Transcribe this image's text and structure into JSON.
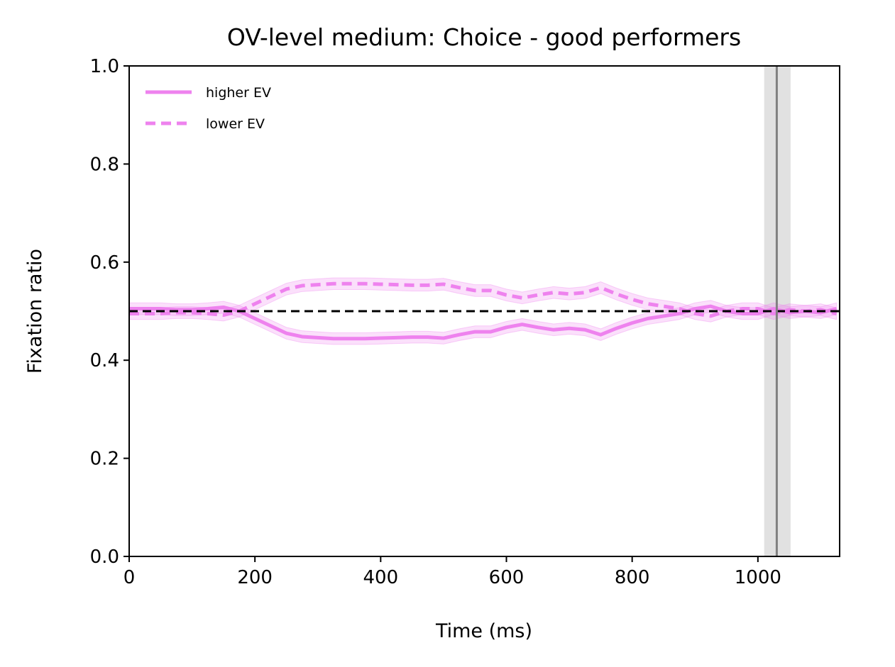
{
  "chart_data": {
    "type": "line",
    "title": "OV-level medium: Choice - good performers",
    "xlabel": "Time (ms)",
    "ylabel": "Fixation ratio",
    "xlim": [
      0,
      1130
    ],
    "ylim": [
      0,
      1
    ],
    "xticks": [
      0,
      200,
      400,
      600,
      800,
      1000
    ],
    "xtick_labels": [
      "0",
      "200",
      "400",
      "600",
      "800",
      "1000"
    ],
    "yticks": [
      0.0,
      0.2,
      0.4,
      0.6,
      0.8,
      1.0
    ],
    "ytick_labels": [
      "0.0",
      "0.2",
      "0.4",
      "0.6",
      "0.8",
      "1.0"
    ],
    "grid": false,
    "legend_position": "top-left",
    "colors": {
      "series": "#ee82ee",
      "reference": "#000000",
      "marker": "#808080",
      "marker_band": "#d9d9d9"
    },
    "reference_line": {
      "y": 0.5,
      "style": "dashed"
    },
    "vertical_marker": {
      "x": 1030,
      "band": [
        1010,
        1052
      ]
    },
    "x": [
      0,
      25,
      50,
      75,
      100,
      125,
      150,
      175,
      200,
      225,
      250,
      275,
      300,
      325,
      350,
      375,
      400,
      425,
      450,
      475,
      500,
      525,
      550,
      575,
      600,
      625,
      650,
      675,
      700,
      725,
      750,
      775,
      800,
      825,
      850,
      875,
      900,
      925,
      950,
      975,
      1000,
      1025,
      1050,
      1075,
      1100,
      1125
    ],
    "series": [
      {
        "name": "higher EV",
        "style": "solid",
        "values": [
          0.505,
          0.505,
          0.505,
          0.503,
          0.503,
          0.505,
          0.508,
          0.5,
          0.485,
          0.47,
          0.455,
          0.448,
          0.446,
          0.444,
          0.444,
          0.444,
          0.445,
          0.446,
          0.447,
          0.447,
          0.445,
          0.452,
          0.458,
          0.458,
          0.467,
          0.473,
          0.467,
          0.462,
          0.465,
          0.462,
          0.452,
          0.465,
          0.476,
          0.485,
          0.49,
          0.495,
          0.505,
          0.51,
          0.5,
          0.495,
          0.495,
          0.505,
          0.497,
          0.5,
          0.497,
          0.505
        ],
        "band": 0.012
      },
      {
        "name": "lower EV",
        "style": "dashed",
        "values": [
          0.495,
          0.495,
          0.495,
          0.497,
          0.497,
          0.495,
          0.492,
          0.5,
          0.515,
          0.53,
          0.545,
          0.552,
          0.554,
          0.556,
          0.556,
          0.556,
          0.555,
          0.554,
          0.553,
          0.553,
          0.555,
          0.548,
          0.542,
          0.542,
          0.533,
          0.527,
          0.533,
          0.538,
          0.535,
          0.538,
          0.548,
          0.535,
          0.524,
          0.515,
          0.51,
          0.505,
          0.495,
          0.49,
          0.5,
          0.505,
          0.505,
          0.495,
          0.503,
          0.5,
          0.503,
          0.495
        ],
        "band": 0.012
      }
    ]
  }
}
